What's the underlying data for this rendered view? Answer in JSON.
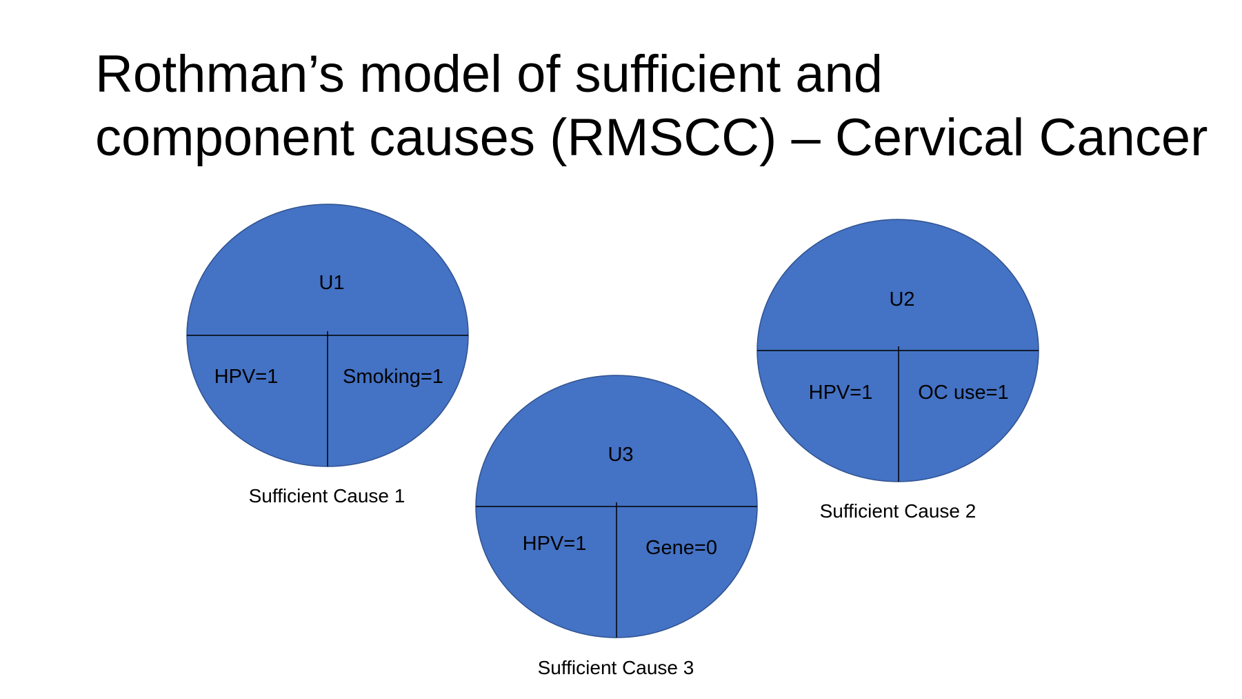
{
  "title": {
    "line1": "Rothman’s model of sufficient and",
    "line2": "component causes (RMSCC) – Cervical Cancer"
  },
  "colors": {
    "circle_fill": "#4472C4",
    "circle_stroke": "#2F528F",
    "divider": "#000000",
    "text": "#000000"
  },
  "sufficient_causes": [
    {
      "top": "U1",
      "bottom_left": "HPV=1",
      "bottom_right": "Smoking=1",
      "caption": "Sufficient Cause 1"
    },
    {
      "top": "U2",
      "bottom_left": "HPV=1",
      "bottom_right": "OC use=1",
      "caption": "Sufficient Cause 2"
    },
    {
      "top": "U3",
      "bottom_left": "HPV=1",
      "bottom_right": "Gene=0",
      "caption": "Sufficient Cause 3"
    }
  ]
}
